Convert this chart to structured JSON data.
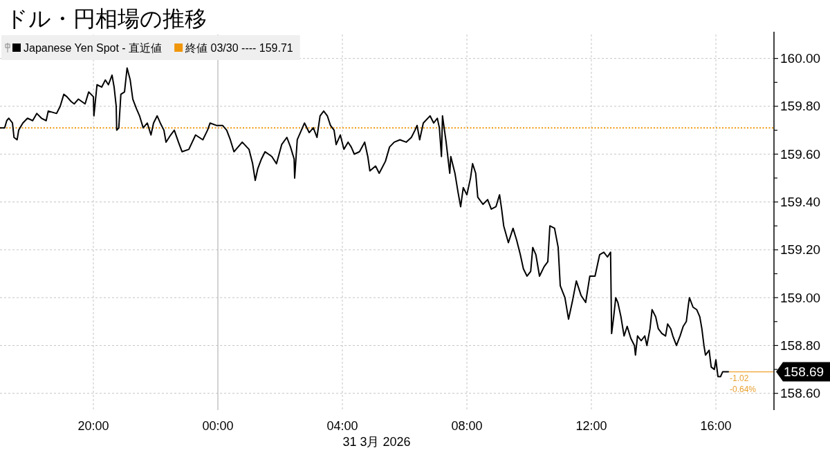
{
  "chart_data": {
    "type": "line",
    "title": "ドル・円相場の推移",
    "xlabel": "31 3月 2026",
    "x": [
      "2026-03-30T17:00",
      "2026-03-30T17:09",
      "2026-03-30T17:13",
      "2026-03-30T17:17",
      "2026-03-30T17:24",
      "2026-03-30T17:27",
      "2026-03-30T17:33",
      "2026-03-30T17:36",
      "2026-03-30T17:44",
      "2026-03-30T17:53",
      "2026-03-30T18:03",
      "2026-03-30T18:11",
      "2026-03-30T18:20",
      "2026-03-30T18:29",
      "2026-03-30T18:33",
      "2026-03-30T18:49",
      "2026-03-30T18:56",
      "2026-03-30T19:03",
      "2026-03-30T19:09",
      "2026-03-30T19:17",
      "2026-03-30T19:23",
      "2026-03-30T19:31",
      "2026-03-30T19:44",
      "2026-03-30T19:51",
      "2026-03-30T20:00",
      "2026-03-30T20:01",
      "2026-03-30T20:07",
      "2026-03-30T20:16",
      "2026-03-30T20:23",
      "2026-03-30T20:29",
      "2026-03-30T20:36",
      "2026-03-30T20:40",
      "2026-03-30T20:44",
      "2026-03-30T20:45",
      "2026-03-30T20:49",
      "2026-03-30T20:53",
      "2026-03-30T21:00",
      "2026-03-30T21:05",
      "2026-03-30T21:11",
      "2026-03-30T21:16",
      "2026-03-30T21:23",
      "2026-03-30T21:29",
      "2026-03-30T21:36",
      "2026-03-30T21:44",
      "2026-03-30T21:51",
      "2026-03-30T21:56",
      "2026-03-30T22:03",
      "2026-03-30T22:09",
      "2026-03-30T22:16",
      "2026-03-30T22:20",
      "2026-03-30T22:29",
      "2026-03-30T22:36",
      "2026-03-30T22:44",
      "2026-03-30T22:51",
      "2026-03-30T23:04",
      "2026-03-30T23:17",
      "2026-03-30T23:31",
      "2026-03-30T23:40",
      "2026-03-30T23:45",
      "2026-03-30T23:57",
      "2026-03-31T00:09",
      "2026-03-31T00:17",
      "2026-03-31T00:24",
      "2026-03-31T00:31",
      "2026-03-31T00:47",
      "2026-03-31T01:00",
      "2026-03-31T01:07",
      "2026-03-31T01:12",
      "2026-03-31T01:17",
      "2026-03-31T01:24",
      "2026-03-31T01:31",
      "2026-03-31T01:44",
      "2026-03-31T01:53",
      "2026-03-31T02:03",
      "2026-03-31T02:13",
      "2026-03-31T02:20",
      "2026-03-31T02:27",
      "2026-03-31T02:28",
      "2026-03-31T02:33",
      "2026-03-31T02:43",
      "2026-03-31T02:47",
      "2026-03-31T02:56",
      "2026-03-31T03:04",
      "2026-03-31T03:11",
      "2026-03-31T03:17",
      "2026-03-31T03:24",
      "2026-03-31T03:31",
      "2026-03-31T03:37",
      "2026-03-31T03:44",
      "2026-03-31T03:48",
      "2026-03-31T03:56",
      "2026-03-31T04:03",
      "2026-03-31T04:11",
      "2026-03-31T04:17",
      "2026-03-31T04:23",
      "2026-03-31T04:33",
      "2026-03-31T04:43",
      "2026-03-31T04:49",
      "2026-03-31T04:53",
      "2026-03-31T05:04",
      "2026-03-31T05:11",
      "2026-03-31T05:23",
      "2026-03-31T05:31",
      "2026-03-31T05:40",
      "2026-03-31T05:51",
      "2026-03-31T06:03",
      "2026-03-31T06:13",
      "2026-03-31T06:20",
      "2026-03-31T06:24",
      "2026-03-31T06:29",
      "2026-03-31T06:36",
      "2026-03-31T06:49",
      "2026-03-31T06:56",
      "2026-03-31T07:03",
      "2026-03-31T07:07",
      "2026-03-31T07:11",
      "2026-03-31T07:13",
      "2026-03-31T07:20",
      "2026-03-31T07:27",
      "2026-03-31T07:29",
      "2026-03-31T07:37",
      "2026-03-31T07:43",
      "2026-03-31T07:48",
      "2026-03-31T07:53",
      "2026-03-31T08:00",
      "2026-03-31T08:07",
      "2026-03-31T08:11",
      "2026-03-31T08:17",
      "2026-03-31T08:21",
      "2026-03-31T08:31",
      "2026-03-31T08:40",
      "2026-03-31T08:47",
      "2026-03-31T08:56",
      "2026-03-31T09:03",
      "2026-03-31T09:07",
      "2026-03-31T09:11",
      "2026-03-31T09:20",
      "2026-03-31T09:29",
      "2026-03-31T09:36",
      "2026-03-31T09:43",
      "2026-03-31T09:49",
      "2026-03-31T09:56",
      "2026-03-31T10:03",
      "2026-03-31T10:07",
      "2026-03-31T10:13",
      "2026-03-31T10:20",
      "2026-03-31T10:29",
      "2026-03-31T10:36",
      "2026-03-31T10:40",
      "2026-03-31T10:49",
      "2026-03-31T10:56",
      "2026-03-31T11:00",
      "2026-03-31T11:09",
      "2026-03-31T11:16",
      "2026-03-31T11:23",
      "2026-03-31T11:31",
      "2026-03-31T11:40",
      "2026-03-31T11:49",
      "2026-03-31T11:57",
      "2026-03-31T12:07",
      "2026-03-31T12:16",
      "2026-03-31T12:24",
      "2026-03-31T12:31",
      "2026-03-31T12:37",
      "2026-03-31T12:39",
      "2026-03-31T12:43",
      "2026-03-31T12:47",
      "2026-03-31T12:51",
      "2026-03-31T12:57",
      "2026-03-31T13:03",
      "2026-03-31T13:09",
      "2026-03-31T13:16",
      "2026-03-31T13:23",
      "2026-03-31T13:25",
      "2026-03-31T13:29",
      "2026-03-31T13:36",
      "2026-03-31T13:43",
      "2026-03-31T13:47",
      "2026-03-31T13:53",
      "2026-03-31T13:57",
      "2026-03-31T14:04",
      "2026-03-31T14:09",
      "2026-03-31T14:16",
      "2026-03-31T14:23",
      "2026-03-31T14:27",
      "2026-03-31T14:33",
      "2026-03-31T14:37",
      "2026-03-31T14:44",
      "2026-03-31T14:51",
      "2026-03-31T14:57",
      "2026-03-31T15:03",
      "2026-03-31T15:07",
      "2026-03-31T15:09",
      "2026-03-31T15:16",
      "2026-03-31T15:23",
      "2026-03-31T15:29",
      "2026-03-31T15:33",
      "2026-03-31T15:37",
      "2026-03-31T15:40",
      "2026-03-31T15:47",
      "2026-03-31T15:51",
      "2026-03-31T15:57",
      "2026-03-31T16:00",
      "2026-03-31T16:04",
      "2026-03-31T16:09",
      "2026-03-31T16:13",
      "2026-03-31T16:24"
    ],
    "series": [
      {
        "name": "Japanese Yen Spot - 直近値",
        "color": "#000000",
        "values": [
          159.71,
          159.71,
          159.74,
          159.75,
          159.73,
          159.67,
          159.66,
          159.7,
          159.73,
          159.75,
          159.74,
          159.77,
          159.75,
          159.74,
          159.78,
          159.77,
          159.8,
          159.85,
          159.84,
          159.82,
          159.81,
          159.83,
          159.81,
          159.86,
          159.84,
          159.76,
          159.89,
          159.88,
          159.91,
          159.89,
          159.93,
          159.88,
          159.8,
          159.7,
          159.71,
          159.85,
          159.86,
          159.96,
          159.91,
          159.83,
          159.79,
          159.76,
          159.71,
          159.73,
          159.68,
          159.73,
          159.76,
          159.73,
          159.7,
          159.65,
          159.68,
          159.7,
          159.65,
          159.61,
          159.62,
          159.68,
          159.66,
          159.7,
          159.73,
          159.72,
          159.72,
          159.7,
          159.66,
          159.61,
          159.65,
          159.62,
          159.56,
          159.49,
          159.54,
          159.58,
          159.61,
          159.59,
          159.56,
          159.64,
          159.67,
          159.63,
          159.58,
          159.5,
          159.66,
          159.71,
          159.73,
          159.69,
          159.71,
          159.67,
          159.76,
          159.78,
          159.76,
          159.72,
          159.7,
          159.64,
          159.68,
          159.62,
          159.65,
          159.63,
          159.6,
          159.61,
          159.65,
          159.59,
          159.53,
          159.55,
          159.52,
          159.57,
          159.63,
          159.65,
          159.66,
          159.65,
          159.67,
          159.7,
          159.72,
          159.66,
          159.73,
          159.76,
          159.73,
          159.75,
          159.71,
          159.59,
          159.76,
          159.65,
          159.52,
          159.59,
          159.52,
          159.44,
          159.38,
          159.46,
          159.43,
          159.5,
          159.56,
          159.52,
          159.42,
          159.39,
          159.41,
          159.37,
          159.38,
          159.43,
          159.37,
          159.3,
          159.23,
          159.29,
          159.24,
          159.18,
          159.12,
          159.09,
          159.11,
          159.21,
          159.18,
          159.09,
          159.13,
          159.15,
          159.3,
          159.29,
          159.21,
          159.05,
          159.0,
          158.91,
          158.98,
          159.07,
          159.01,
          158.98,
          159.09,
          159.09,
          159.18,
          159.19,
          159.17,
          159.19,
          158.85,
          158.92,
          159.0,
          158.98,
          158.92,
          158.84,
          158.88,
          158.83,
          158.8,
          158.76,
          158.84,
          158.82,
          158.84,
          158.8,
          158.87,
          158.95,
          158.92,
          158.87,
          158.85,
          158.84,
          158.89,
          158.87,
          158.84,
          158.8,
          158.84,
          158.88,
          158.9,
          158.97,
          159.0,
          158.96,
          158.95,
          158.92,
          158.87,
          158.8,
          158.76,
          158.78,
          158.71,
          158.7,
          158.74,
          158.67,
          158.67,
          158.69,
          158.69
        ]
      }
    ],
    "xlim": [
      "2026-03-30T17:00",
      "2026-03-31T17:52"
    ],
    "xticks": [
      {
        "value": "2026-03-30T20:00",
        "label": "20:00"
      },
      {
        "value": "2026-03-31T00:00",
        "label": "00:00"
      },
      {
        "value": "2026-03-31T04:00",
        "label": "04:00"
      },
      {
        "value": "2026-03-31T08:00",
        "label": "08:00"
      },
      {
        "value": "2026-03-31T12:00",
        "label": "12:00"
      },
      {
        "value": "2026-03-31T16:00",
        "label": "16:00"
      }
    ],
    "ylim": [
      158.53,
      160.1
    ],
    "yticks": [
      {
        "value": 158.6,
        "label": "158.60"
      },
      {
        "value": 158.7,
        "label": null
      },
      {
        "value": 158.8,
        "label": "158.80"
      },
      {
        "value": 158.9,
        "label": null
      },
      {
        "value": 159,
        "label": "159.00"
      },
      {
        "value": 159.1,
        "label": null
      },
      {
        "value": 159.2,
        "label": "159.20"
      },
      {
        "value": 159.3,
        "label": null
      },
      {
        "value": 159.4,
        "label": "159.40"
      },
      {
        "value": 159.5,
        "label": null
      },
      {
        "value": 159.6,
        "label": "159.60"
      },
      {
        "value": 159.7,
        "label": null
      },
      {
        "value": 159.8,
        "label": "159.80"
      },
      {
        "value": 159.9,
        "label": null
      },
      {
        "value": 160,
        "label": "160.00"
      }
    ],
    "grid": true,
    "legend": "top left",
    "ref_lines": [
      {
        "axis": "y",
        "value": 159.71,
        "label": "終値 03/30 ---- 159.71",
        "color": "#f0960a",
        "line_style": "dotted"
      },
      {
        "axis": "x",
        "value": "2026-03-31T00:00",
        "color": "#b4b4b4",
        "line_style": "solid"
      }
    ],
    "annotations": [
      {
        "text": "158.69",
        "x": "2026-03-31T16:24",
        "y": 158.69
      },
      {
        "text": "-1.02",
        "x": "2026-03-31T16:24",
        "y": 158.69
      },
      {
        "text": "-0.64%",
        "x": "2026-03-31T16:24",
        "y": 158.69
      }
    ]
  }
}
